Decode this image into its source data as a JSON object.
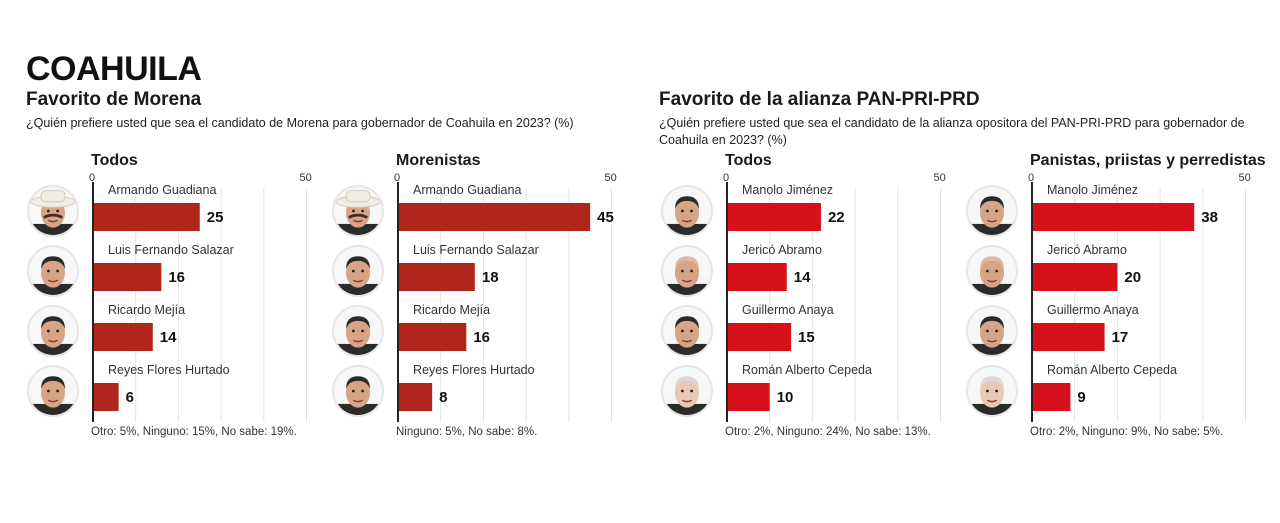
{
  "header": {
    "title": "COAHUILA"
  },
  "sections": [
    {
      "title": "Favorito de Morena",
      "question": "¿Quién prefiere usted que sea el candidato de Morena para gobernador de Coahuila en 2023? (%)"
    },
    {
      "title": "Favorito de la alianza PAN-PRI-PRD",
      "question": "¿Quién prefiere usted que sea el candidato de la alianza opositora del PAN-PRI-PRD para gobernador de Coahuila en 2023? (%)"
    }
  ],
  "colors": {
    "morena_bar": "#b0261c",
    "alianza_bar": "#d6111b",
    "axis": "#222222",
    "grid": "#e3e3e3"
  },
  "chart_data": [
    {
      "type": "bar",
      "orientation": "horizontal",
      "title": "Todos",
      "section": "Favorito de Morena",
      "categories": [
        "Armando Guadiana",
        "Luis Fernando Salazar",
        "Ricardo Mejía",
        "Reyes Flores Hurtado"
      ],
      "values": [
        25,
        16,
        14,
        6
      ],
      "value_labels": [
        "25",
        "16",
        "14",
        "6"
      ],
      "xlim": [
        0,
        50
      ],
      "tick_labels": [
        "0",
        "50"
      ],
      "grid": true,
      "grid_step": 10,
      "footnote": "Otro: 5%, Ninguno: 15%, No sabe: 19%.",
      "color_key": "morena_bar",
      "avatar_icons": [
        "man-hat-avatar-icon",
        "man-avatar-icon",
        "man-avatar-icon",
        "man-avatar-icon"
      ]
    },
    {
      "type": "bar",
      "orientation": "horizontal",
      "title": "Morenistas",
      "section": "Favorito de Morena",
      "categories": [
        "Armando Guadiana",
        "Luis Fernando Salazar",
        "Ricardo Mejía",
        "Reyes Flores Hurtado"
      ],
      "values": [
        45,
        18,
        16,
        8
      ],
      "value_labels": [
        "45",
        "18",
        "16",
        "8"
      ],
      "xlim": [
        0,
        50
      ],
      "tick_labels": [
        "0",
        "50"
      ],
      "grid": true,
      "grid_step": 10,
      "footnote": "Ninguno: 5%, No sabe: 8%.",
      "color_key": "morena_bar",
      "avatar_icons": [
        "man-hat-avatar-icon",
        "man-avatar-icon",
        "man-avatar-icon",
        "man-avatar-icon"
      ]
    },
    {
      "type": "bar",
      "orientation": "horizontal",
      "title": "Todos",
      "section": "Favorito de la alianza PAN-PRI-PRD",
      "categories": [
        "Manolo Jiménez",
        "Jericó Abramo",
        "Guillermo Anaya",
        "Román Alberto Cepeda"
      ],
      "values": [
        22,
        14,
        15,
        10
      ],
      "value_labels": [
        "22",
        "14",
        "15",
        "10"
      ],
      "xlim": [
        0,
        50
      ],
      "tick_labels": [
        "0",
        "50"
      ],
      "grid": true,
      "grid_step": 10,
      "footnote": "Otro: 2%, Ninguno: 24%, No sabe: 13%.",
      "color_key": "alianza_bar",
      "avatar_icons": [
        "man-avatar-icon",
        "man-bald-avatar-icon",
        "man-avatar-icon",
        "man-gray-avatar-icon"
      ]
    },
    {
      "type": "bar",
      "orientation": "horizontal",
      "title": "Panistas, priistas y perredistas",
      "section": "Favorito de la alianza PAN-PRI-PRD",
      "categories": [
        "Manolo Jiménez",
        "Jericó Abramo",
        "Guillermo Anaya",
        "Román Alberto Cepeda"
      ],
      "values": [
        38,
        20,
        17,
        9
      ],
      "value_labels": [
        "38",
        "20",
        "17",
        "9"
      ],
      "xlim": [
        0,
        50
      ],
      "tick_labels": [
        "0",
        "50"
      ],
      "grid": true,
      "grid_step": 10,
      "footnote": "Otro: 2%, Ninguno: 9%, No sabe: 5%.",
      "color_key": "alianza_bar",
      "avatar_icons": [
        "man-avatar-icon",
        "man-bald-avatar-icon",
        "man-avatar-icon",
        "man-gray-avatar-icon"
      ]
    }
  ]
}
